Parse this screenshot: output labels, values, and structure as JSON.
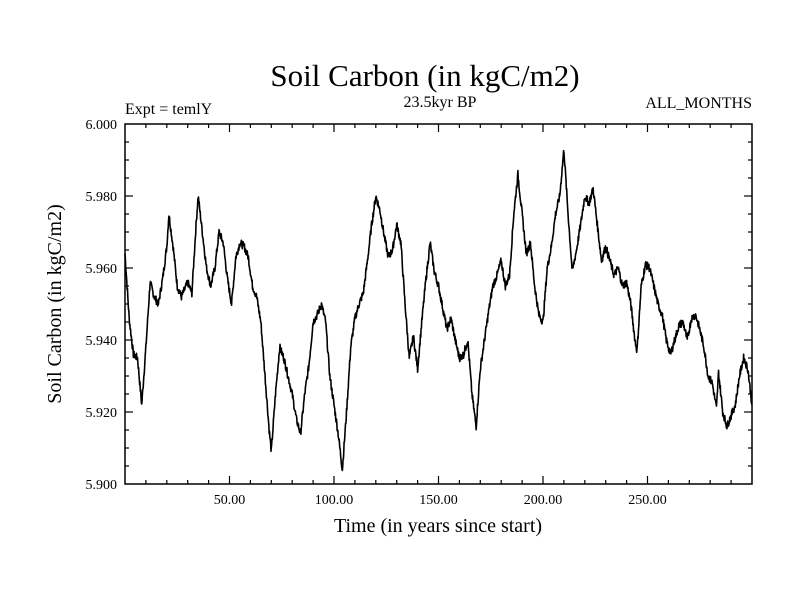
{
  "chart_data": {
    "type": "line",
    "title": "Soil Carbon (in kgC/m2)",
    "subtitle_left": "Expt = temlY",
    "subtitle_center": "23.5kyr BP",
    "subtitle_right": "ALL_MONTHS",
    "xlabel": "Time (in years since start)",
    "ylabel": "Soil Carbon (in kgC/m2)",
    "xlim": [
      0,
      300
    ],
    "ylim": [
      5.9,
      6.0
    ],
    "x_ticks": [
      50,
      100,
      150,
      200,
      250
    ],
    "x_tick_labels": [
      "50.00",
      "100.00",
      "150.00",
      "200.00",
      "250.00"
    ],
    "y_ticks": [
      5.9,
      5.92,
      5.94,
      5.96,
      5.98,
      6.0
    ],
    "y_tick_labels": [
      "5.900",
      "5.920",
      "5.940",
      "5.960",
      "5.980",
      "6.000"
    ],
    "color": "#000000",
    "series": [
      {
        "name": "Soil Carbon",
        "points": [
          [
            0,
            5.964
          ],
          [
            2,
            5.946
          ],
          [
            4,
            5.936
          ],
          [
            6,
            5.935
          ],
          [
            8,
            5.922
          ],
          [
            10,
            5.938
          ],
          [
            12,
            5.956
          ],
          [
            14,
            5.952
          ],
          [
            16,
            5.95
          ],
          [
            18,
            5.957
          ],
          [
            20,
            5.966
          ],
          [
            21,
            5.975
          ],
          [
            23,
            5.966
          ],
          [
            25,
            5.955
          ],
          [
            27,
            5.952
          ],
          [
            30,
            5.956
          ],
          [
            32,
            5.953
          ],
          [
            34,
            5.972
          ],
          [
            35,
            5.98
          ],
          [
            37,
            5.97
          ],
          [
            39,
            5.96
          ],
          [
            41,
            5.955
          ],
          [
            43,
            5.96
          ],
          [
            45,
            5.97
          ],
          [
            47,
            5.967
          ],
          [
            49,
            5.957
          ],
          [
            51,
            5.95
          ],
          [
            53,
            5.963
          ],
          [
            55,
            5.967
          ],
          [
            57,
            5.966
          ],
          [
            59,
            5.963
          ],
          [
            61,
            5.955
          ],
          [
            63,
            5.952
          ],
          [
            65,
            5.945
          ],
          [
            67,
            5.93
          ],
          [
            69,
            5.915
          ],
          [
            70,
            5.909
          ],
          [
            72,
            5.925
          ],
          [
            74,
            5.938
          ],
          [
            76,
            5.935
          ],
          [
            78,
            5.93
          ],
          [
            80,
            5.925
          ],
          [
            82,
            5.918
          ],
          [
            84,
            5.914
          ],
          [
            86,
            5.925
          ],
          [
            88,
            5.933
          ],
          [
            90,
            5.945
          ],
          [
            92,
            5.947
          ],
          [
            94,
            5.95
          ],
          [
            96,
            5.945
          ],
          [
            98,
            5.93
          ],
          [
            100,
            5.922
          ],
          [
            102,
            5.914
          ],
          [
            104,
            5.904
          ],
          [
            106,
            5.92
          ],
          [
            108,
            5.938
          ],
          [
            110,
            5.946
          ],
          [
            112,
            5.95
          ],
          [
            114,
            5.953
          ],
          [
            116,
            5.962
          ],
          [
            118,
            5.972
          ],
          [
            120,
            5.98
          ],
          [
            122,
            5.976
          ],
          [
            124,
            5.969
          ],
          [
            126,
            5.963
          ],
          [
            128,
            5.965
          ],
          [
            130,
            5.972
          ],
          [
            132,
            5.967
          ],
          [
            134,
            5.95
          ],
          [
            136,
            5.935
          ],
          [
            138,
            5.941
          ],
          [
            140,
            5.932
          ],
          [
            142,
            5.945
          ],
          [
            144,
            5.957
          ],
          [
            146,
            5.967
          ],
          [
            148,
            5.959
          ],
          [
            150,
            5.955
          ],
          [
            152,
            5.949
          ],
          [
            154,
            5.943
          ],
          [
            156,
            5.946
          ],
          [
            158,
            5.94
          ],
          [
            160,
            5.935
          ],
          [
            162,
            5.936
          ],
          [
            164,
            5.94
          ],
          [
            166,
            5.925
          ],
          [
            168,
            5.916
          ],
          [
            170,
            5.932
          ],
          [
            172,
            5.94
          ],
          [
            174,
            5.948
          ],
          [
            176,
            5.955
          ],
          [
            178,
            5.958
          ],
          [
            180,
            5.962
          ],
          [
            182,
            5.955
          ],
          [
            184,
            5.958
          ],
          [
            186,
            5.975
          ],
          [
            188,
            5.986
          ],
          [
            190,
            5.975
          ],
          [
            192,
            5.964
          ],
          [
            194,
            5.967
          ],
          [
            196,
            5.955
          ],
          [
            198,
            5.947
          ],
          [
            200,
            5.945
          ],
          [
            202,
            5.96
          ],
          [
            204,
            5.966
          ],
          [
            206,
            5.975
          ],
          [
            208,
            5.98
          ],
          [
            210,
            5.993
          ],
          [
            212,
            5.975
          ],
          [
            214,
            5.959
          ],
          [
            216,
            5.965
          ],
          [
            218,
            5.972
          ],
          [
            220,
            5.98
          ],
          [
            222,
            5.978
          ],
          [
            224,
            5.982
          ],
          [
            226,
            5.972
          ],
          [
            228,
            5.962
          ],
          [
            230,
            5.966
          ],
          [
            232,
            5.962
          ],
          [
            234,
            5.958
          ],
          [
            236,
            5.96
          ],
          [
            238,
            5.955
          ],
          [
            240,
            5.956
          ],
          [
            242,
            5.95
          ],
          [
            244,
            5.94
          ],
          [
            245,
            5.937
          ],
          [
            247,
            5.955
          ],
          [
            249,
            5.961
          ],
          [
            251,
            5.96
          ],
          [
            253,
            5.955
          ],
          [
            255,
            5.95
          ],
          [
            257,
            5.947
          ],
          [
            259,
            5.94
          ],
          [
            261,
            5.936
          ],
          [
            263,
            5.94
          ],
          [
            265,
            5.944
          ],
          [
            267,
            5.945
          ],
          [
            269,
            5.94
          ],
          [
            271,
            5.946
          ],
          [
            273,
            5.947
          ],
          [
            275,
            5.943
          ],
          [
            277,
            5.938
          ],
          [
            279,
            5.93
          ],
          [
            281,
            5.928
          ],
          [
            283,
            5.921
          ],
          [
            284,
            5.931
          ],
          [
            286,
            5.92
          ],
          [
            288,
            5.916
          ],
          [
            290,
            5.919
          ],
          [
            292,
            5.922
          ],
          [
            294,
            5.93
          ],
          [
            296,
            5.935
          ],
          [
            298,
            5.932
          ],
          [
            300,
            5.922
          ]
        ]
      }
    ]
  }
}
